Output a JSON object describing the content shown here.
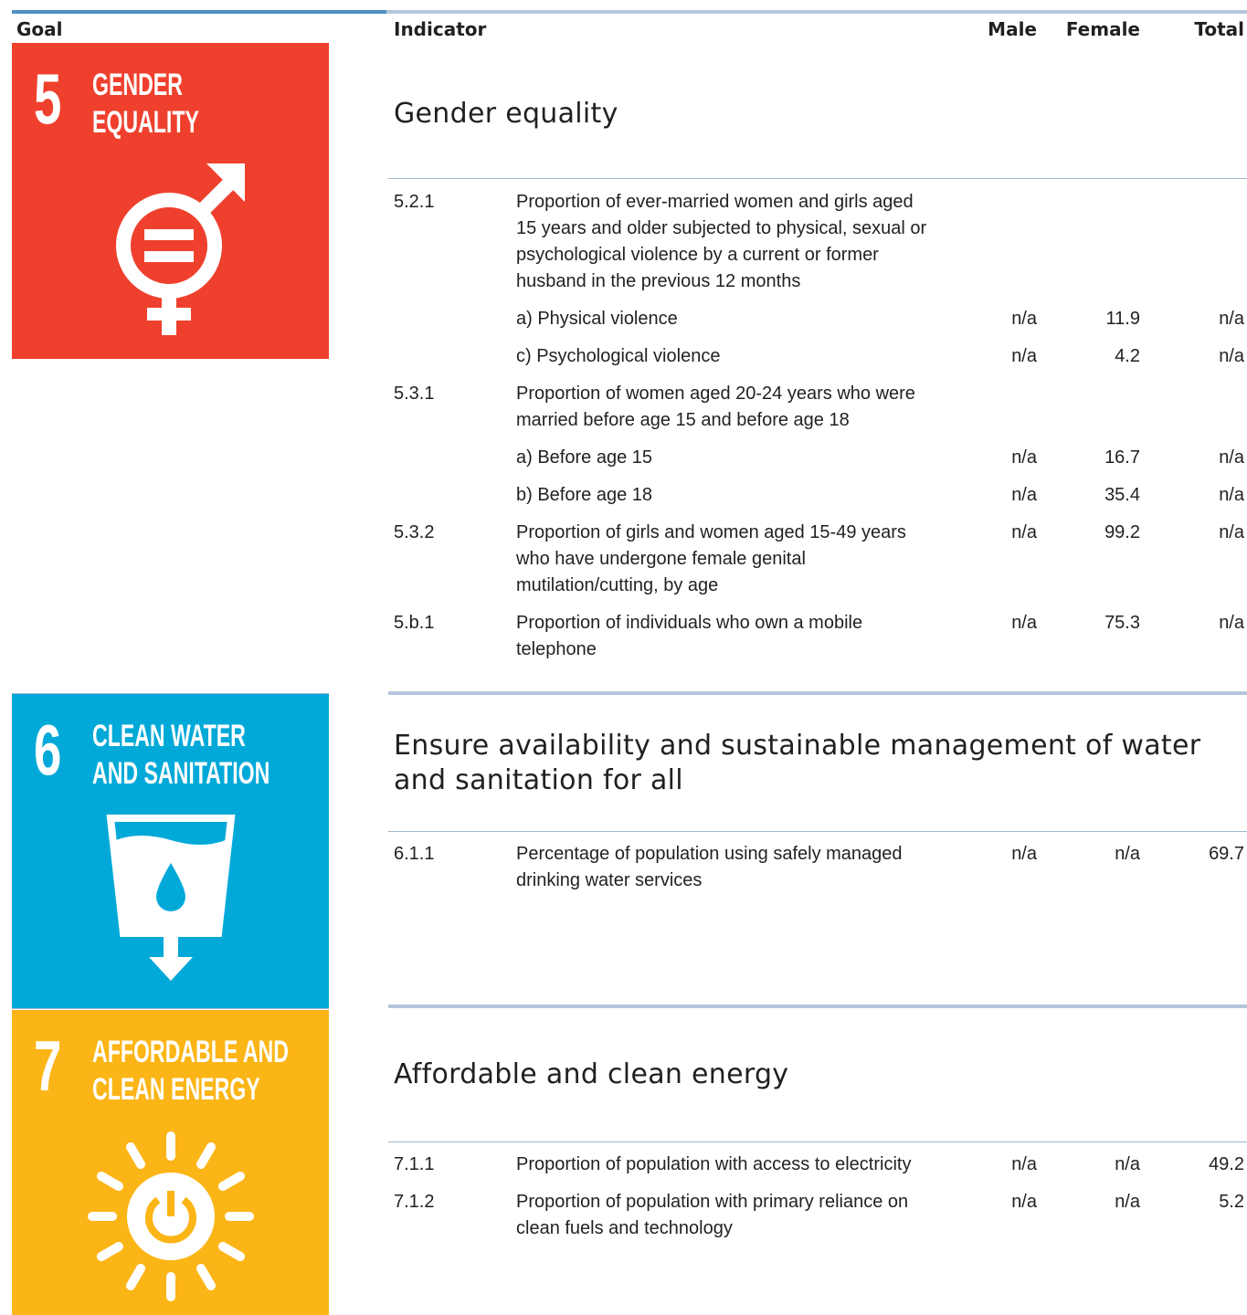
{
  "header": {
    "columns": [
      "Goal",
      "Indicator",
      "Male",
      "Female",
      "Total"
    ]
  },
  "goals": [
    {
      "number": "5",
      "name_lines": [
        "GENDER",
        "EQUALITY"
      ],
      "heading": "Gender equality",
      "rows": [
        {
          "code": "5.2.1",
          "text": "Proportion of ever-married women and girls aged 15 years and older subjected to physical, sexual or psychological violence by a current or former husband in the previous 12 months"
        },
        {
          "text": "a) Physical violence",
          "male": "n/a",
          "female": 11.9,
          "total": "n/a"
        },
        {
          "text": "c) Psychological violence",
          "male": "n/a",
          "female": 4.2,
          "total": "n/a"
        },
        {
          "code": "5.3.1",
          "text": "Proportion of women aged 20-24 years who were married before age 15 and before age 18"
        },
        {
          "text": "a) Before age 15",
          "male": "n/a",
          "female": 16.7,
          "total": "n/a"
        },
        {
          "text": "b) Before age 18",
          "male": "n/a",
          "female": 35.4,
          "total": "n/a"
        },
        {
          "code": "5.3.2",
          "text": "Proportion of girls and women aged 15-49 years who have undergone female genital mutilation/cutting, by age",
          "male": "n/a",
          "female": 99.2,
          "total": "n/a"
        },
        {
          "code": "5.b.1",
          "text": "Proportion of individuals who own a mobile telephone",
          "male": "n/a",
          "female": 75.3,
          "total": "n/a"
        }
      ]
    },
    {
      "number": "6",
      "name_lines": [
        "CLEAN WATER",
        "AND SANITATION"
      ],
      "heading": "Ensure availability and sustainable management of water and sanitation for all",
      "rows": [
        {
          "code": "6.1.1",
          "text": "Percentage of population using safely managed drinking water services",
          "male": "n/a",
          "female": "n/a",
          "total": 69.7
        }
      ]
    },
    {
      "number": "7",
      "name_lines": [
        "AFFORDABLE AND",
        "CLEAN ENERGY"
      ],
      "heading": "Affordable and clean energy",
      "rows": [
        {
          "code": "7.1.1",
          "text": "Proportion of population with access to electricity",
          "male": "n/a",
          "female": "n/a",
          "total": 49.2
        },
        {
          "code": "7.1.2",
          "text": "Proportion of population with primary reliance on clean fuels and technology",
          "male": "n/a",
          "female": "n/a",
          "total": 5.2
        }
      ]
    }
  ]
}
